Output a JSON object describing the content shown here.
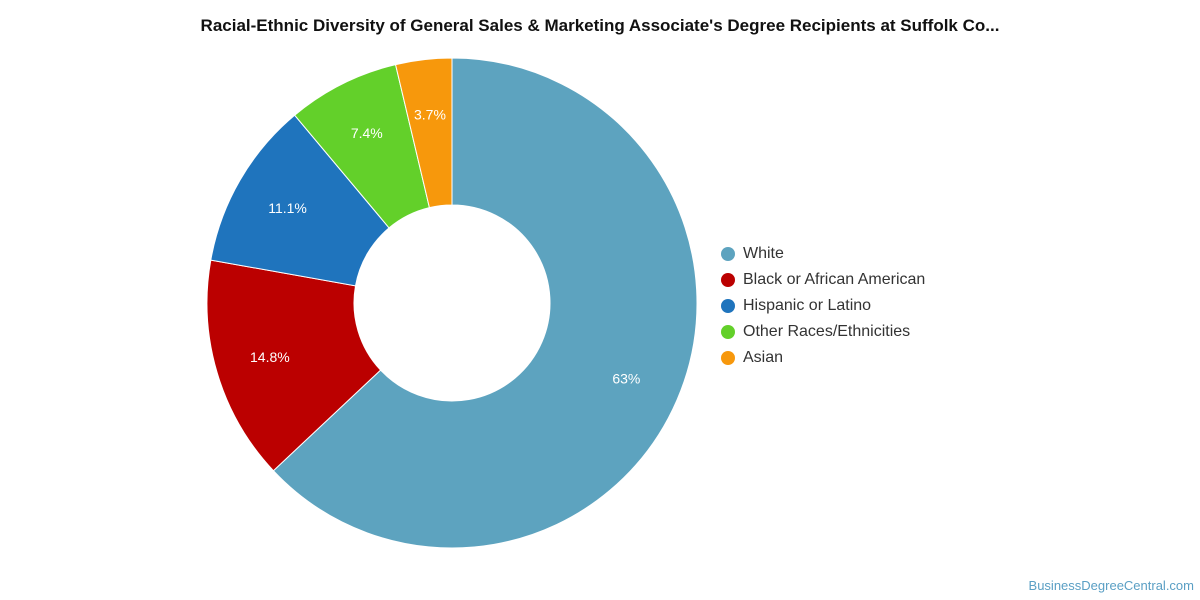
{
  "chart_data": {
    "type": "pie",
    "style": "donut",
    "title": "Racial-Ethnic Diversity of General Sales & Marketing Associate's Degree Recipients at Suffolk Co...",
    "slices": [
      {
        "label": "White",
        "value": 63.0,
        "display": "63%",
        "color": "#5da3bf"
      },
      {
        "label": "Black or African American",
        "value": 14.8,
        "display": "14.8%",
        "color": "#bb0000"
      },
      {
        "label": "Hispanic or Latino",
        "value": 11.1,
        "display": "11.1%",
        "color": "#1f74bd"
      },
      {
        "label": "Other Races/Ethnicities",
        "value": 7.4,
        "display": "7.4%",
        "color": "#63d02a"
      },
      {
        "label": "Asian",
        "value": 3.7,
        "display": "3.7%",
        "color": "#f7980c"
      }
    ],
    "legend_position": "right"
  },
  "watermark": "BusinessDegreeCentral.com"
}
